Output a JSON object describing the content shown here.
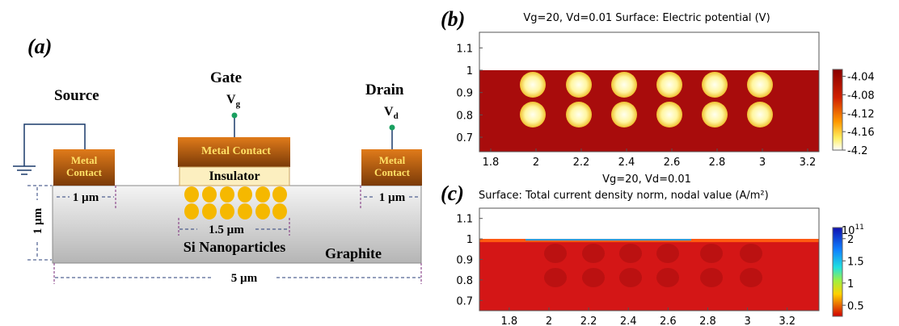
{
  "panel_a": {
    "label": "(a)",
    "source": "Source",
    "gate": "Gate",
    "gate_voltage": {
      "symbol": "V",
      "subscript": "g"
    },
    "drain": "Drain",
    "drain_voltage": {
      "symbol": "V",
      "subscript": "d"
    },
    "source_contact": [
      "Metal",
      "Contact"
    ],
    "gate_contact": "Metal Contact",
    "drain_contact": [
      "Metal",
      "Contact"
    ],
    "insulator": "Insulator",
    "source_width": "1 µm",
    "drain_width": "1 µm",
    "thickness": "1 µm",
    "particle_span": "1.5 µm",
    "nanoparticles": "Si Nanoparticles",
    "substrate": "Graphite",
    "length": "5 µm"
  },
  "panel_b": {
    "label": "(b)",
    "title": "Vg=20, Vd=0.01   Surface: Electric potential (V)",
    "xlim": [
      1.75,
      3.25
    ],
    "ylim": [
      0.635,
      1.17
    ],
    "xticks": [
      1.8,
      2,
      2.2,
      2.4,
      2.6,
      2.8,
      3,
      3.2
    ],
    "yticks": [
      1.1,
      1,
      0.9,
      0.8,
      0.7
    ],
    "colorbar_lim": [
      -4.2,
      -4.025
    ],
    "colorbar_ticks": [
      -4.04,
      -4.08,
      -4.12,
      -4.16,
      -4.2
    ]
  },
  "panel_c": {
    "label": "(c)",
    "title": "Vg=20, Vd=0.01",
    "subtitle": "Surface: Total current density norm, nodal value (A/m²)",
    "xlim": [
      1.65,
      3.36
    ],
    "ylim": [
      0.65,
      1.15
    ],
    "xticks": [
      1.8,
      2,
      2.2,
      2.4,
      2.6,
      2.8,
      3,
      3.2
    ],
    "yticks": [
      1.1,
      1,
      0.9,
      0.8,
      0.7
    ],
    "colorbar_lim": [
      0.25,
      2.25
    ],
    "colorbar_ticks": [
      2,
      1.5,
      1,
      0.5
    ],
    "multiplier": "×10",
    "multiplier_exponent": "11"
  }
}
